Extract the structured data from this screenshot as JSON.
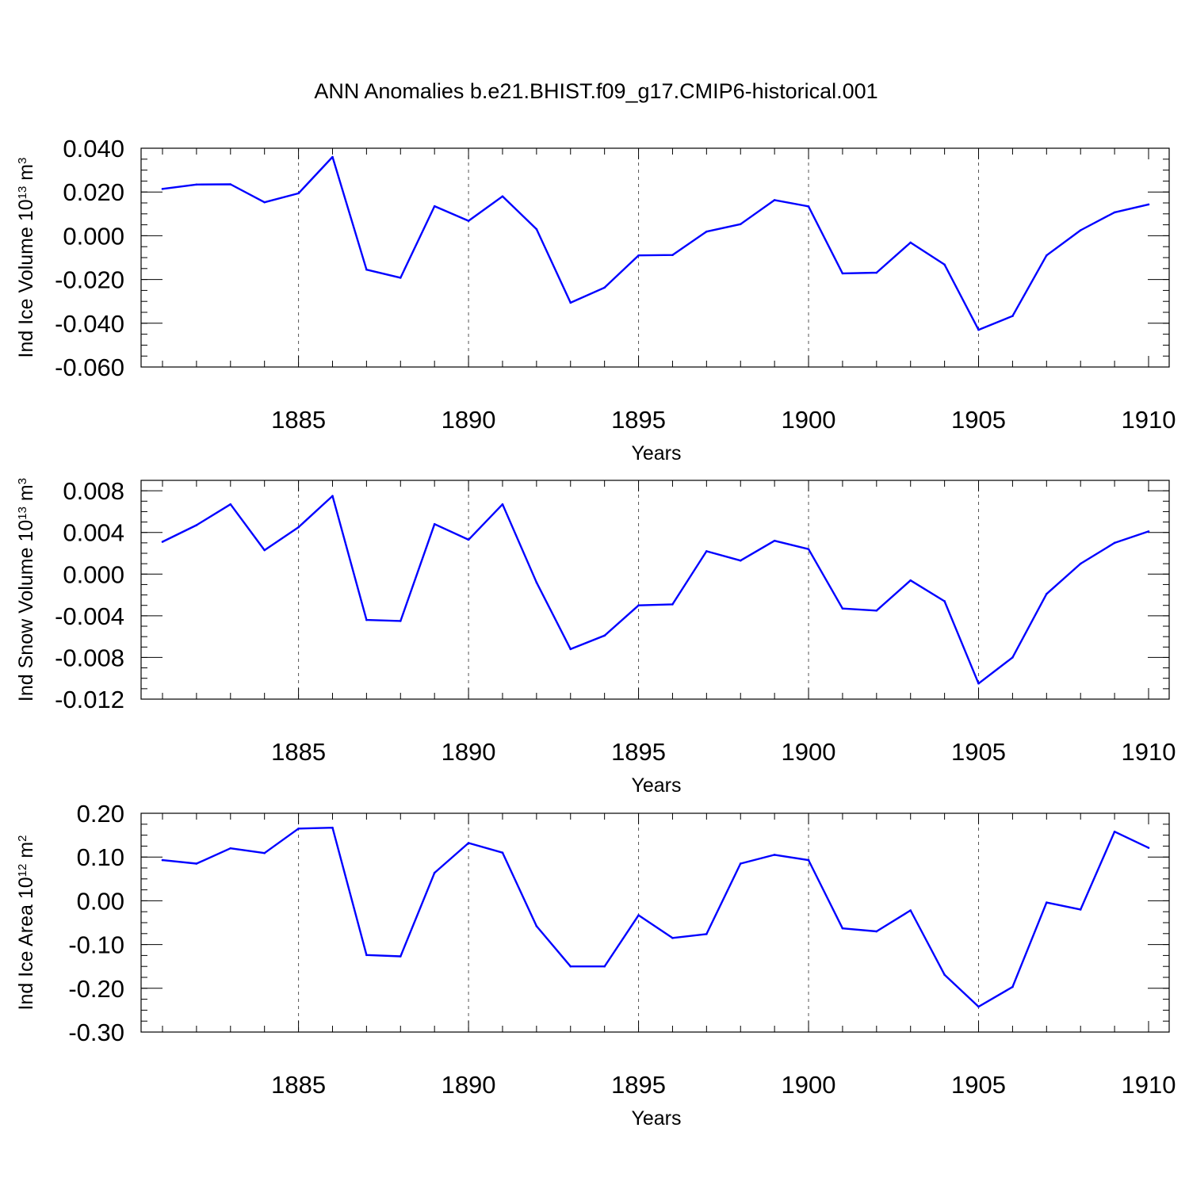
{
  "figure": {
    "title": "ANN Anomalies b.e21.BHIST.f09_g17.CMIP6-historical.001"
  },
  "chart_data": [
    {
      "type": "line",
      "xlabel": "Years",
      "ylabel": {
        "text": "Ind Ice Volume 10",
        "sup1": "13",
        "unit": " m",
        "sup2": "3"
      },
      "xlim": [
        1881,
        1910
      ],
      "ylim": [
        -0.06,
        0.04
      ],
      "x_ticks": [
        1885,
        1890,
        1895,
        1900,
        1905,
        1910
      ],
      "y_ticks": [
        {
          "value": 0.04,
          "label": "0.040"
        },
        {
          "value": 0.02,
          "label": "0.020"
        },
        {
          "value": 0.0,
          "label": "0.000"
        },
        {
          "value": -0.02,
          "label": "-0.020"
        },
        {
          "value": -0.04,
          "label": "-0.040"
        },
        {
          "value": -0.06,
          "label": "-0.060"
        }
      ],
      "y_minor_step": 0.005,
      "grid": "dashed vertical lines at labeled x ticks",
      "series": [
        {
          "color": "#0000ff",
          "x": [
            1881,
            1882,
            1883,
            1884,
            1885,
            1886,
            1887,
            1888,
            1889,
            1890,
            1891,
            1892,
            1893,
            1894,
            1895,
            1896,
            1897,
            1898,
            1899,
            1900,
            1901,
            1902,
            1903,
            1904,
            1905,
            1906,
            1907,
            1908,
            1909,
            1910
          ],
          "y": [
            0.0214,
            0.0234,
            0.0235,
            0.0153,
            0.0194,
            0.036,
            -0.0155,
            -0.0192,
            0.0135,
            0.0068,
            0.018,
            0.003,
            -0.0306,
            -0.0237,
            -0.009,
            -0.0088,
            0.0019,
            0.0053,
            0.0163,
            0.0134,
            -0.0172,
            -0.0169,
            -0.0031,
            -0.0132,
            -0.043,
            -0.0367,
            -0.009,
            0.0025,
            0.0107,
            0.0143
          ]
        }
      ]
    },
    {
      "type": "line",
      "xlabel": "Years",
      "ylabel": {
        "text": "Ind Snow Volume 10",
        "sup1": "13",
        "unit": " m",
        "sup2": "3"
      },
      "xlim": [
        1881,
        1910
      ],
      "ylim": [
        -0.012,
        0.009
      ],
      "x_ticks": [
        1885,
        1890,
        1895,
        1900,
        1905,
        1910
      ],
      "y_ticks": [
        {
          "value": 0.008,
          "label": "0.008"
        },
        {
          "value": 0.004,
          "label": "0.004"
        },
        {
          "value": 0.0,
          "label": "0.000"
        },
        {
          "value": -0.004,
          "label": "-0.004"
        },
        {
          "value": -0.008,
          "label": "-0.008"
        },
        {
          "value": -0.012,
          "label": "-0.012"
        }
      ],
      "y_minor_step": 0.001,
      "grid": "dashed vertical lines at labeled x ticks",
      "series": [
        {
          "color": "#0000ff",
          "x": [
            1881,
            1882,
            1883,
            1884,
            1885,
            1886,
            1887,
            1888,
            1889,
            1890,
            1891,
            1892,
            1893,
            1894,
            1895,
            1896,
            1897,
            1898,
            1899,
            1900,
            1901,
            1902,
            1903,
            1904,
            1905,
            1906,
            1907,
            1908,
            1909,
            1910
          ],
          "y": [
            0.0031,
            0.0047,
            0.0067,
            0.0023,
            0.0045,
            0.0075,
            -0.0044,
            -0.0045,
            0.0048,
            0.0033,
            0.0067,
            -0.0008,
            -0.0072,
            -0.0059,
            -0.003,
            -0.0029,
            0.0022,
            0.0013,
            0.0032,
            0.0024,
            -0.0033,
            -0.0035,
            -0.0006,
            -0.0026,
            -0.0105,
            -0.008,
            -0.0019,
            0.001,
            0.003,
            0.0041
          ]
        }
      ]
    },
    {
      "type": "line",
      "xlabel": "Years",
      "ylabel": {
        "text": "Ind Ice Area 10",
        "sup1": "12",
        "unit": " m",
        "sup2": "2"
      },
      "xlim": [
        1881,
        1910
      ],
      "ylim": [
        -0.3,
        0.2
      ],
      "x_ticks": [
        1885,
        1890,
        1895,
        1900,
        1905,
        1910
      ],
      "y_ticks": [
        {
          "value": 0.2,
          "label": "0.20"
        },
        {
          "value": 0.1,
          "label": "0.10"
        },
        {
          "value": 0.0,
          "label": "0.00"
        },
        {
          "value": -0.1,
          "label": "-0.10"
        },
        {
          "value": -0.2,
          "label": "-0.20"
        },
        {
          "value": -0.3,
          "label": "-0.30"
        }
      ],
      "y_minor_step": 0.025,
      "grid": "dashed vertical lines at labeled x ticks",
      "series": [
        {
          "color": "#0000ff",
          "x": [
            1881,
            1882,
            1883,
            1884,
            1885,
            1886,
            1887,
            1888,
            1889,
            1890,
            1891,
            1892,
            1893,
            1894,
            1895,
            1896,
            1897,
            1898,
            1899,
            1900,
            1901,
            1902,
            1903,
            1904,
            1905,
            1906,
            1907,
            1908,
            1909,
            1910
          ],
          "y": [
            0.093,
            0.085,
            0.12,
            0.109,
            0.165,
            0.167,
            -0.124,
            -0.127,
            0.064,
            0.132,
            0.11,
            -0.058,
            -0.15,
            -0.15,
            -0.033,
            -0.085,
            -0.076,
            0.085,
            0.105,
            0.093,
            -0.063,
            -0.07,
            -0.022,
            -0.169,
            -0.242,
            -0.197,
            -0.004,
            -0.02,
            0.158,
            0.121
          ]
        }
      ]
    }
  ]
}
